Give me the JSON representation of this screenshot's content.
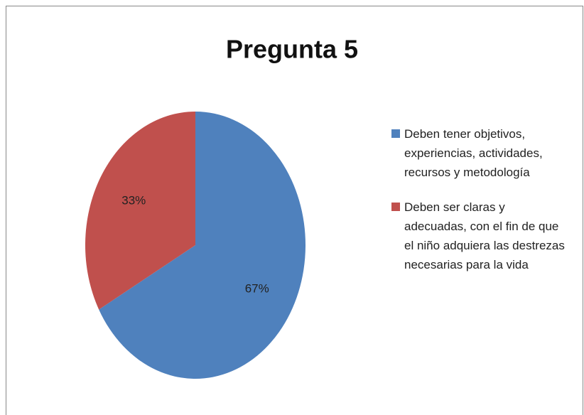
{
  "chart_data": {
    "type": "pie",
    "title": "Pregunta 5",
    "categories": [
      "Deben tener objetivos, experiencias, actividades, recursos y metodología",
      "Deben ser claras y adecuadas, con el fin de que el niño adquiera las destrezas necesarias para la vida"
    ],
    "values": [
      67,
      33
    ],
    "value_labels": [
      "67%",
      "33%"
    ],
    "colors": [
      "#4f81bd",
      "#c0504d"
    ],
    "legend": "right"
  }
}
